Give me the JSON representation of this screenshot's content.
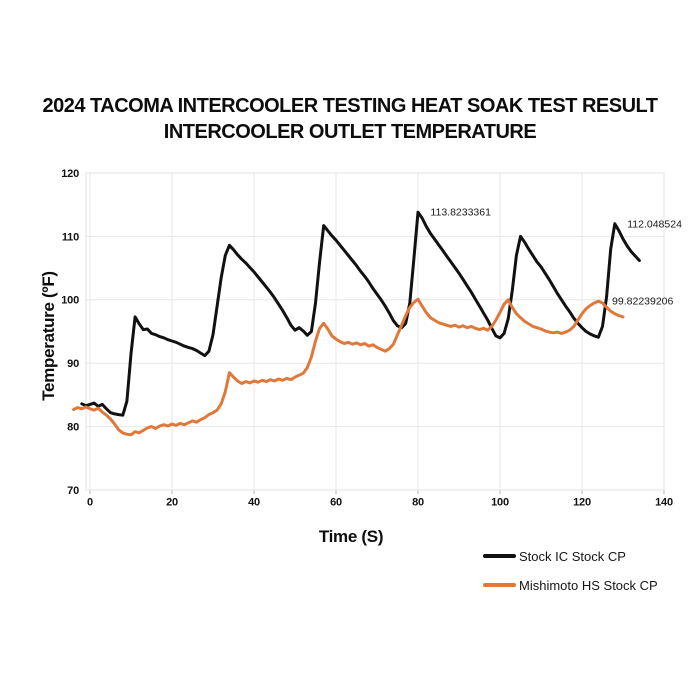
{
  "title": {
    "line1": "2024 TACOMA INTERCOOLER TESTING HEAT SOAK TEST RESULT",
    "line2": "INTERCOOLER OUTLET TEMPERATURE"
  },
  "chart_data": {
    "type": "line",
    "title": "2024 Tacoma Intercooler Testing Heat Soak Test Result - Intercooler Outlet Temperature",
    "xlabel": "Time (S)",
    "ylabel": "Temperature (ºF)",
    "xlim": [
      0,
      140
    ],
    "ylim": [
      70,
      120
    ],
    "x_ticks": [
      "0",
      "20",
      "40",
      "60",
      "80",
      "100",
      "120",
      "140"
    ],
    "y_ticks": [
      "70",
      "80",
      "90",
      "100",
      "110",
      "120"
    ],
    "grid": true,
    "legend_position": "bottom-right",
    "series": [
      {
        "name": "Stock IC Stock CP",
        "color": "#111111",
        "x_start": -2,
        "x_step": 1,
        "values": [
          83.6,
          83.3,
          83.5,
          83.7,
          83.2,
          83.5,
          82.8,
          82.2,
          82.0,
          81.9,
          81.8,
          84.0,
          91.5,
          97.3,
          96.2,
          95.3,
          95.4,
          94.7,
          94.5,
          94.2,
          94.0,
          93.7,
          93.5,
          93.3,
          93.0,
          92.7,
          92.5,
          92.3,
          92.0,
          91.6,
          91.2,
          91.9,
          94.5,
          99.0,
          103.5,
          107.0,
          108.6,
          107.9,
          107.1,
          106.4,
          105.8,
          105.1,
          104.4,
          103.6,
          102.8,
          102.0,
          101.2,
          100.3,
          99.3,
          98.3,
          97.2,
          96.0,
          95.2,
          95.6,
          95.1,
          94.4,
          95.0,
          99.5,
          106.0,
          111.7,
          110.9,
          110.1,
          109.4,
          108.6,
          107.8,
          107.0,
          106.2,
          105.4,
          104.5,
          103.7,
          102.8,
          101.8,
          100.9,
          100.0,
          99.0,
          97.9,
          96.7,
          95.9,
          95.6,
          96.3,
          99.5,
          106.5,
          113.8,
          112.9,
          111.6,
          110.5,
          109.6,
          108.7,
          107.8,
          106.9,
          106.0,
          105.1,
          104.2,
          103.2,
          102.2,
          101.2,
          100.1,
          99.0,
          97.9,
          96.8,
          95.5,
          94.3,
          94.0,
          94.7,
          97.0,
          101.5,
          107.0,
          110.0,
          109.1,
          108.0,
          107.0,
          106.0,
          105.2,
          104.2,
          103.2,
          102.1,
          101.0,
          100.0,
          99.0,
          98.1,
          97.1,
          96.3,
          95.6,
          95.0,
          94.6,
          94.3,
          94.1,
          95.8,
          100.5,
          108.0,
          112.0,
          110.9,
          109.6,
          108.5,
          107.6,
          106.9,
          106.2
        ]
      },
      {
        "name": "Mishimoto HS Stock CP",
        "color": "#E0783A",
        "x_start": -4,
        "x_step": 1,
        "values": [
          82.7,
          83.0,
          82.8,
          83.1,
          82.8,
          82.6,
          82.9,
          82.3,
          81.8,
          81.2,
          80.4,
          79.5,
          79.0,
          78.8,
          78.7,
          79.2,
          79.0,
          79.4,
          79.8,
          80.0,
          79.7,
          80.1,
          80.3,
          80.1,
          80.4,
          80.2,
          80.5,
          80.3,
          80.6,
          80.9,
          80.7,
          81.1,
          81.4,
          81.9,
          82.2,
          82.6,
          83.6,
          85.5,
          88.5,
          87.8,
          87.2,
          86.8,
          87.1,
          86.9,
          87.2,
          87.0,
          87.3,
          87.1,
          87.4,
          87.2,
          87.5,
          87.3,
          87.6,
          87.4,
          87.8,
          88.1,
          88.4,
          89.3,
          91.0,
          93.5,
          95.5,
          96.3,
          95.4,
          94.3,
          93.8,
          93.4,
          93.1,
          93.3,
          93.0,
          93.2,
          92.9,
          93.1,
          92.7,
          92.9,
          92.5,
          92.2,
          91.9,
          92.3,
          93.0,
          94.5,
          96.0,
          97.5,
          98.8,
          99.6,
          100.1,
          99.0,
          98.0,
          97.2,
          96.8,
          96.4,
          96.2,
          96.0,
          95.8,
          96.0,
          95.7,
          95.9,
          95.6,
          95.8,
          95.5,
          95.3,
          95.5,
          95.2,
          95.8,
          96.8,
          98.0,
          99.3,
          100.0,
          98.8,
          97.8,
          97.2,
          96.6,
          96.2,
          95.8,
          95.6,
          95.4,
          95.1,
          94.9,
          94.8,
          94.9,
          94.7,
          94.9,
          95.2,
          95.8,
          96.8,
          97.8,
          98.6,
          99.1,
          99.5,
          99.8,
          99.5,
          98.8,
          98.2,
          97.8,
          97.5,
          97.3
        ]
      }
    ],
    "annotations": [
      {
        "label": "113.8233361",
        "x": 82.3,
        "y": 113.9
      },
      {
        "label": "112.048524",
        "x": 130.3,
        "y": 112.0
      },
      {
        "label": "99.82239206",
        "x": 126.6,
        "y": 99.8
      }
    ]
  },
  "legend": {
    "items": [
      {
        "label": "Stock IC Stock CP",
        "color": "#111111"
      },
      {
        "label": "Mishimoto HS Stock CP",
        "color": "#E0783A"
      }
    ]
  }
}
